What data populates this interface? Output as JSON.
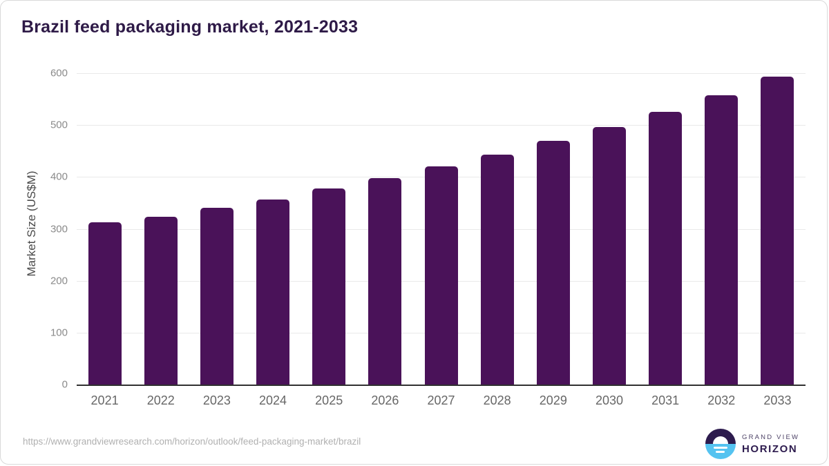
{
  "chart_data": {
    "type": "bar",
    "title": "Brazil feed packaging market, 2021-2033",
    "categories": [
      "2021",
      "2022",
      "2023",
      "2024",
      "2025",
      "2026",
      "2027",
      "2028",
      "2029",
      "2030",
      "2031",
      "2032",
      "2033"
    ],
    "values": [
      312,
      323,
      340,
      357,
      378,
      398,
      420,
      443,
      469,
      496,
      526,
      558,
      593
    ],
    "xlabel": "",
    "ylabel": "Market Size (US$M)",
    "ylim": [
      0,
      600
    ],
    "ytick_step": 100,
    "yticks": [
      0,
      100,
      200,
      300,
      400,
      500,
      600
    ],
    "grid": true,
    "legend_position": "none"
  },
  "footer": {
    "source_url": "https://www.grandviewresearch.com/horizon/outlook/feed-packaging-market/brazil",
    "logo": {
      "top_text": "GRAND VIEW",
      "bottom_text": "HORIZON"
    }
  },
  "colors": {
    "title_text": "#2e1a47",
    "bar": "#4a1259",
    "axis_line": "#303030",
    "gridline": "#e9e9e9",
    "y_tick_text": "#8a8a8a",
    "x_tick_text": "#666666",
    "axis_title_text": "#4a4a4a",
    "url_text": "#b0b0b0",
    "logo_purple": "#2d1b4e",
    "logo_blue": "#55c3f0"
  }
}
